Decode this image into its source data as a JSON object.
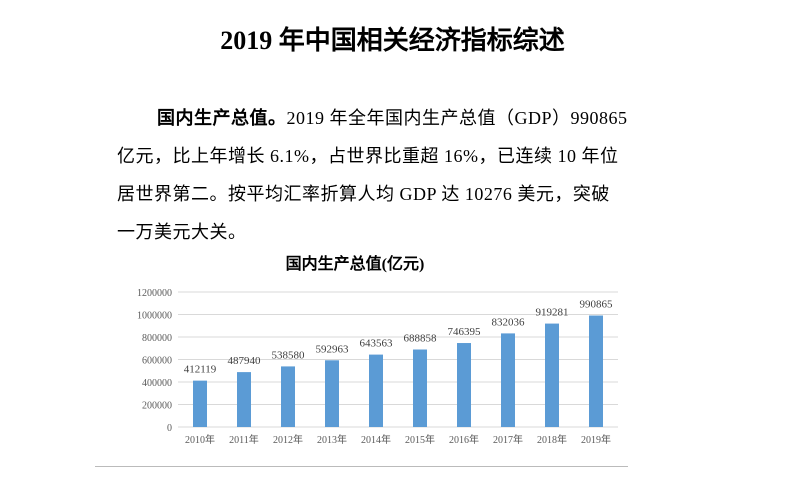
{
  "title": "2019 年中国相关经济指标综述",
  "paragraph": {
    "lead": "国内生产总值。",
    "lines": [
      "2019 年全年国内生产总值（GDP）990865",
      "亿元，比上年增长 6.1%，占世界比重超 16%，已连续 10 年位",
      "居世界第二。按平均汇率折算人均 GDP 达 10276 美元，突破",
      "一万美元大关。"
    ]
  },
  "chart_data": {
    "type": "bar",
    "title": "国内生产总值(亿元)",
    "categories": [
      "2010年",
      "2011年",
      "2012年",
      "2013年",
      "2014年",
      "2015年",
      "2016年",
      "2017年",
      "2018年",
      "2019年"
    ],
    "values": [
      412119,
      487940,
      538580,
      592963,
      643563,
      688858,
      746395,
      832036,
      919281,
      990865
    ],
    "yticks": [
      0,
      200000,
      400000,
      600000,
      800000,
      1000000,
      1200000
    ],
    "ylim": [
      0,
      1200000
    ],
    "grid": true,
    "bar_color": "#5b9bd5",
    "xlabel": "",
    "ylabel": ""
  }
}
